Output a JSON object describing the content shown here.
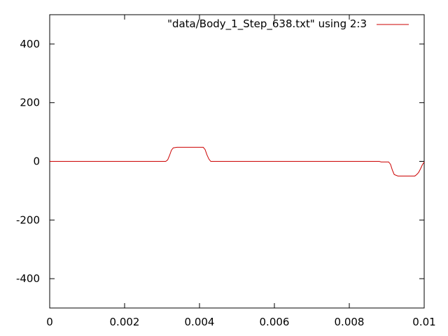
{
  "chart_data": {
    "type": "line",
    "title": "",
    "xlabel": "",
    "ylabel": "",
    "xlim": [
      0,
      0.01
    ],
    "ylim": [
      -500,
      500
    ],
    "x_ticks": [
      0,
      0.002,
      0.004,
      0.006,
      0.008,
      0.01
    ],
    "x_tick_labels": [
      "0",
      "0.002",
      "0.004",
      "0.006",
      "0.008",
      "0.01"
    ],
    "y_ticks": [
      -400,
      -200,
      0,
      200,
      400
    ],
    "y_tick_labels": [
      "-400",
      "-200",
      "0",
      "200",
      "400"
    ],
    "grid": false,
    "legend_position": "top-right",
    "series": [
      {
        "name": "\"data/Body_1_Step_638.txt\" using 2:3",
        "color": "#cc0000",
        "x": [
          0,
          0.0031,
          0.00315,
          0.0032,
          0.00325,
          0.0033,
          0.0034,
          0.0036,
          0.0038,
          0.004,
          0.0041,
          0.00415,
          0.0042,
          0.00425,
          0.0043,
          0.005,
          0.006,
          0.007,
          0.008,
          0.0088,
          0.00885,
          0.009,
          0.00905,
          0.0091,
          0.00915,
          0.0092,
          0.0093,
          0.0095,
          0.0097,
          0.00975,
          0.0098,
          0.00985,
          0.0099,
          0.00995,
          0.01
        ],
        "y": [
          0,
          0,
          5,
          20,
          38,
          46,
          48,
          48,
          48,
          48,
          48,
          40,
          22,
          8,
          0,
          0,
          0,
          0,
          0,
          0,
          -2,
          -2,
          -2,
          -10,
          -30,
          -45,
          -50,
          -50,
          -50,
          -50,
          -45,
          -38,
          -26,
          -12,
          -2
        ]
      }
    ]
  }
}
